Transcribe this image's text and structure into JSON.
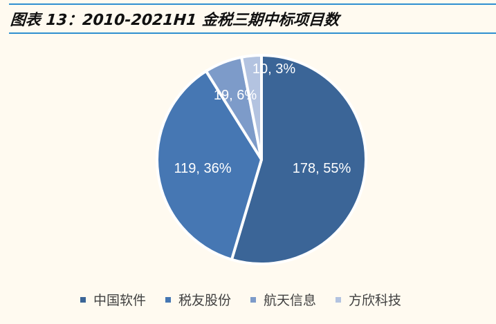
{
  "header": {
    "title": "图表 13：2010-2021H1 金税三期中标项目数"
  },
  "colors": {
    "rule": "#2e8fd0",
    "background": "#fffaf0"
  },
  "chart_data": {
    "type": "pie",
    "title": "图表 13：2010-2021H1 金税三期中标项目数",
    "categories": [
      "中国软件",
      "税友股份",
      "航天信息",
      "方欣科技"
    ],
    "values": [
      178,
      119,
      19,
      10
    ],
    "percentages": [
      55,
      36,
      6,
      3
    ],
    "labels": [
      "178, 55%",
      "119, 36%",
      "19, 6%",
      "10, 3%"
    ],
    "colors": [
      "#3b6597",
      "#4677b3",
      "#7d9bc9",
      "#b3c3e0"
    ],
    "start_angle": "12 o'clock",
    "direction": "clockwise",
    "legend_position": "bottom"
  },
  "legend": [
    {
      "label": "中国软件",
      "color": "#3b6597"
    },
    {
      "label": "税友股份",
      "color": "#4677b3"
    },
    {
      "label": "航天信息",
      "color": "#7d9bc9"
    },
    {
      "label": "方欣科技",
      "color": "#b3c3e0"
    }
  ]
}
